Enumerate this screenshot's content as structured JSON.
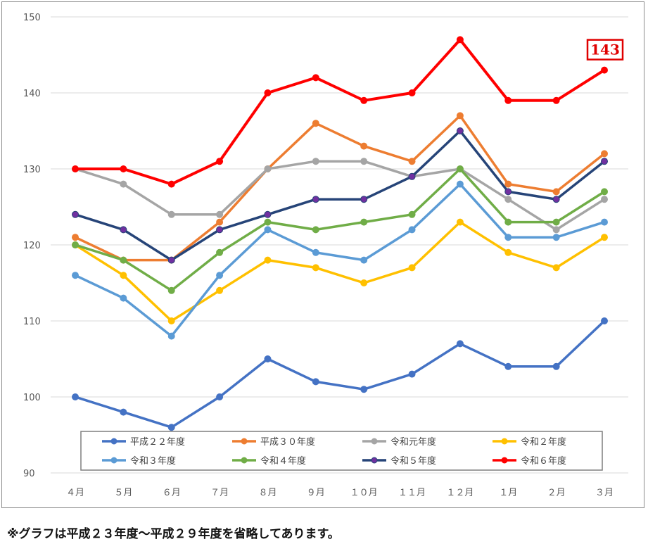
{
  "chart_data": {
    "type": "line",
    "categories": [
      "４月",
      "５月",
      "６月",
      "７月",
      "８月",
      "９月",
      "１０月",
      "１１月",
      "１２月",
      "１月",
      "２月",
      "３月"
    ],
    "ylim": [
      90,
      150
    ],
    "yticks": [
      "90",
      "100",
      "110",
      "120",
      "130",
      "140",
      "150"
    ],
    "grid": true,
    "legend_position": "bottom-inside",
    "series": [
      {
        "name": "平成２２年度",
        "color": "#4472c4",
        "marker": "#4472c4",
        "values": [
          100,
          98,
          96,
          100,
          105,
          102,
          101,
          103,
          107,
          104,
          104,
          110
        ]
      },
      {
        "name": "平成３０年度",
        "color": "#ed7d31",
        "marker": "#ed7d31",
        "values": [
          121,
          118,
          118,
          123,
          130,
          136,
          133,
          131,
          137,
          128,
          127,
          132
        ]
      },
      {
        "name": "令和元年度",
        "color": "#a5a5a5",
        "marker": "#a5a5a5",
        "values": [
          130,
          128,
          124,
          124,
          130,
          131,
          131,
          129,
          130,
          126,
          122,
          126
        ]
      },
      {
        "name": "令和２年度",
        "color": "#ffc000",
        "marker": "#ffc000",
        "values": [
          120,
          116,
          110,
          114,
          118,
          117,
          115,
          117,
          123,
          119,
          117,
          121
        ]
      },
      {
        "name": "令和３年度",
        "color": "#5b9bd5",
        "marker": "#5b9bd5",
        "values": [
          116,
          113,
          108,
          116,
          122,
          119,
          118,
          122,
          128,
          121,
          121,
          123
        ]
      },
      {
        "name": "令和４年度",
        "color": "#70ad47",
        "marker": "#70ad47",
        "values": [
          120,
          118,
          114,
          119,
          123,
          122,
          123,
          124,
          130,
          123,
          123,
          127
        ]
      },
      {
        "name": "令和５年度",
        "color": "#264478",
        "marker": "#7030a0",
        "values": [
          124,
          122,
          118,
          122,
          124,
          126,
          126,
          129,
          135,
          127,
          126,
          131
        ]
      },
      {
        "name": "令和６年度",
        "color": "#ff0000",
        "marker": "#ff0000",
        "values": [
          130,
          130,
          128,
          131,
          140,
          142,
          139,
          140,
          147,
          139,
          139,
          143
        ]
      }
    ],
    "annotation": {
      "text": "143",
      "color": "#e00000"
    }
  },
  "footnote": "※グラフは平成２３年度～平成２９年度を省略してあります。"
}
